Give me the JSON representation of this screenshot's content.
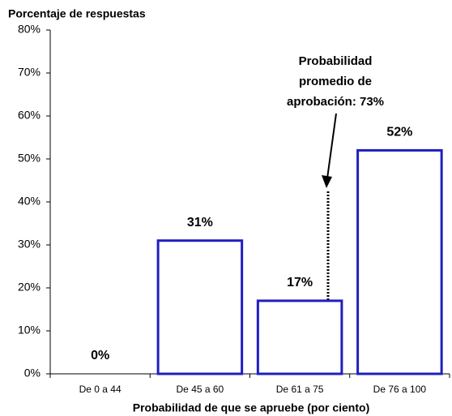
{
  "chart_data": {
    "type": "bar",
    "title": "Porcentaje de respuestas",
    "x_label": "Probabilidad de que se apruebe (por ciento)",
    "categories": [
      "De 0 a 44",
      "De 45 a 60",
      "De 61 a 75",
      "De 76 a 100"
    ],
    "values": [
      0,
      31,
      17,
      52
    ],
    "value_labels": [
      "0%",
      "31%",
      "17%",
      "52%"
    ],
    "color": "#1f1fbf",
    "ylim": [
      0,
      80
    ],
    "yticks": [
      {
        "value": 0,
        "label": "0%"
      },
      {
        "value": 10,
        "label": "10%"
      },
      {
        "value": 20,
        "label": "20%"
      },
      {
        "value": 30,
        "label": "30%"
      },
      {
        "value": 40,
        "label": "40%"
      },
      {
        "value": 50,
        "label": "50%"
      },
      {
        "value": 60,
        "label": "60%"
      },
      {
        "value": 70,
        "label": "70%"
      },
      {
        "value": 80,
        "label": "80%"
      }
    ],
    "grid": false,
    "annotation": [
      "Probabilidad",
      "promedio de",
      "aprobación: 73%"
    ]
  }
}
